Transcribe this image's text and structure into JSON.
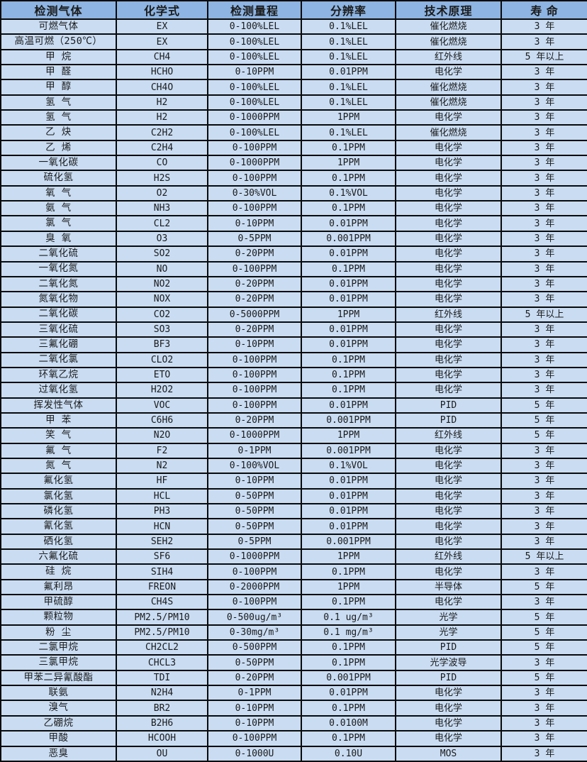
{
  "colors": {
    "header_bg": "#8DB4E2",
    "row_bg": "#C9DCF2",
    "border": "#0a0a0a",
    "text": "#1b1b1b"
  },
  "chart_data": {
    "type": "table",
    "title": "",
    "columns": [
      "检测气体",
      "化学式",
      "检测量程",
      "分辨率",
      "技术原理",
      "寿 命"
    ],
    "column_keys": [
      "gas",
      "formula",
      "range",
      "resolution",
      "principle",
      "lifespan"
    ],
    "rows": [
      [
        "可燃气体",
        "EX",
        "0-100%LEL",
        "0.1%LEL",
        "催化燃烧",
        "3 年"
      ],
      [
        "高温可燃（250℃）",
        "EX",
        "0-100%LEL",
        "0.1%LEL",
        "催化燃烧",
        "3 年"
      ],
      [
        "甲 烷",
        "CH4",
        "0-100%LEL",
        "0.1%LEL",
        "红外线",
        "5 年以上"
      ],
      [
        "甲 醛",
        "HCHO",
        "0-10PPM",
        "0.01PPM",
        "电化学",
        "3 年"
      ],
      [
        "甲 醇",
        "CH4O",
        "0-100%LEL",
        "0.1%LEL",
        "催化燃烧",
        "3 年"
      ],
      [
        "氢 气",
        "H2",
        "0-100%LEL",
        "0.1%LEL",
        "催化燃烧",
        "3 年"
      ],
      [
        "氢 气",
        "H2",
        "0-1000PPM",
        "1PPM",
        "电化学",
        "3 年"
      ],
      [
        "乙 炔",
        "C2H2",
        "0-100%LEL",
        "0.1%LEL",
        "催化燃烧",
        "3 年"
      ],
      [
        "乙 烯",
        "C2H4",
        "0-100PPM",
        "0.1PPM",
        "电化学",
        "3 年"
      ],
      [
        "一氧化碳",
        "CO",
        "0-1000PPM",
        "1PPM",
        "电化学",
        "3 年"
      ],
      [
        "硫化氢",
        "H2S",
        "0-100PPM",
        "0.1PPM",
        "电化学",
        "3 年"
      ],
      [
        "氧 气",
        "O2",
        "0-30%VOL",
        "0.1%VOL",
        "电化学",
        "3 年"
      ],
      [
        "氨 气",
        "NH3",
        "0-100PPM",
        "0.1PPM",
        "电化学",
        "3 年"
      ],
      [
        "氯 气",
        "CL2",
        "0-10PPM",
        "0.01PPM",
        "电化学",
        "3 年"
      ],
      [
        "臭 氧",
        "O3",
        "0-5PPM",
        "0.001PPM",
        "电化学",
        "3 年"
      ],
      [
        "二氧化硫",
        "SO2",
        "0-20PPM",
        "0.01PPM",
        "电化学",
        "3 年"
      ],
      [
        "一氧化氮",
        "NO",
        "0-100PPM",
        "0.1PPM",
        "电化学",
        "3 年"
      ],
      [
        "二氧化氮",
        "NO2",
        "0-20PPM",
        "0.01PPM",
        "电化学",
        "3 年"
      ],
      [
        "氮氧化物",
        "NOX",
        "0-20PPM",
        "0.01PPM",
        "电化学",
        "3 年"
      ],
      [
        "二氧化碳",
        "CO2",
        "0-5000PPM",
        "1PPM",
        "红外线",
        "5 年以上"
      ],
      [
        "三氧化硫",
        "SO3",
        "0-20PPM",
        "0.01PPM",
        "电化学",
        "3 年"
      ],
      [
        "三氟化硼",
        "BF3",
        "0-10PPM",
        "0.01PPM",
        "电化学",
        "3 年"
      ],
      [
        "二氧化氯",
        "CLO2",
        "0-100PPM",
        "0.1PPM",
        "电化学",
        "3 年"
      ],
      [
        "环氧乙烷",
        "ETO",
        "0-100PPM",
        "0.1PPM",
        "电化学",
        "3 年"
      ],
      [
        "过氧化氢",
        "H2O2",
        "0-100PPM",
        "0.1PPM",
        "电化学",
        "3 年"
      ],
      [
        "挥发性气体",
        "VOC",
        "0-100PPM",
        "0.01PPM",
        "PID",
        "5 年"
      ],
      [
        "甲 苯",
        "C6H6",
        "0-20PPM",
        "0.001PPM",
        "PID",
        "5 年"
      ],
      [
        "笑 气",
        "N2O",
        "0-1000PPM",
        "1PPM",
        "红外线",
        "5 年"
      ],
      [
        "氟 气",
        "F2",
        "0-1PPM",
        "0.001PPM",
        "电化学",
        "3 年"
      ],
      [
        "氮 气",
        "N2",
        "0-100%VOL",
        "0.1%VOL",
        "电化学",
        "3 年"
      ],
      [
        "氟化氢",
        "HF",
        "0-10PPM",
        "0.01PPM",
        "电化学",
        "3 年"
      ],
      [
        "氯化氢",
        "HCL",
        "0-50PPM",
        "0.01PPM",
        "电化学",
        "3 年"
      ],
      [
        "磷化氢",
        "PH3",
        "0-50PPM",
        "0.01PPM",
        "电化学",
        "3 年"
      ],
      [
        "氰化氢",
        "HCN",
        "0-50PPM",
        "0.01PPM",
        "电化学",
        "3 年"
      ],
      [
        "硒化氢",
        "SEH2",
        "0-5PPM",
        "0.001PPM",
        "电化学",
        "3 年"
      ],
      [
        "六氟化硫",
        "SF6",
        "0-1000PPM",
        "1PPM",
        "红外线",
        "5 年以上"
      ],
      [
        "硅 烷",
        "SIH4",
        "0-100PPM",
        "0.1PPM",
        "电化学",
        "3 年"
      ],
      [
        "氟利昂",
        "FREON",
        "0-2000PPM",
        "1PPM",
        "半导体",
        "5 年"
      ],
      [
        "甲硫醇",
        "CH4S",
        "0-100PPM",
        "0.1PPM",
        "电化学",
        "3 年"
      ],
      [
        "颗粒物",
        "PM2.5/PM10",
        "0-500ug/m³",
        "0.1 ug/m³",
        "光学",
        "5 年"
      ],
      [
        "粉 尘",
        "PM2.5/PM10",
        "0-30mg/m³",
        "0.1 mg/m³",
        "光学",
        "5 年"
      ],
      [
        "二氯甲烷",
        "CH2CL2",
        "0-500PPM",
        "0.1PPM",
        "PID",
        "5 年"
      ],
      [
        "三氯甲烷",
        "CHCL3",
        "0-50PPM",
        "0.1PPM",
        "光学波导",
        "3 年"
      ],
      [
        "甲苯二异氰酸酯",
        "TDI",
        "0-20PPM",
        "0.001PPM",
        "PID",
        "5 年"
      ],
      [
        "联氨",
        "N2H4",
        "0-1PPM",
        "0.01PPM",
        "电化学",
        "3 年"
      ],
      [
        "溴气",
        "BR2",
        "0-10PPM",
        "0.1PPM",
        "电化学",
        "3 年"
      ],
      [
        "乙硼烷",
        "B2H6",
        "0-10PPM",
        "0.0100M",
        "电化学",
        "3 年"
      ],
      [
        "甲酸",
        "HCOOH",
        "0-100PPM",
        "0.1PPM",
        "电化学",
        "3 年"
      ],
      [
        "恶臭",
        "OU",
        "0-1000U",
        "0.10U",
        "MOS",
        "3 年"
      ]
    ]
  }
}
